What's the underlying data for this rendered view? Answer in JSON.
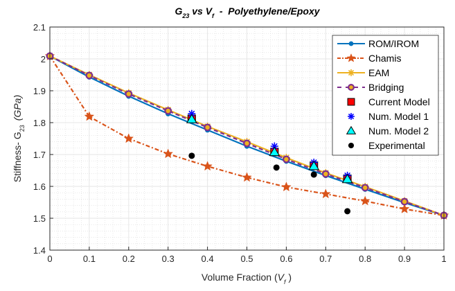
{
  "chart_data": {
    "type": "line",
    "title": {
      "main": "G",
      "sub1": "23",
      "mid": " vs V",
      "sub2": "f",
      "rest": "  -  Polyethylene/Epoxy"
    },
    "xlabel": {
      "main": "Volume Fraction (",
      "italic": "V",
      "sub": "f",
      "close": " )"
    },
    "ylabel": {
      "main": "Stiffness- G",
      "sub": "23",
      "unit": "(GPa)"
    },
    "xlim": [
      0,
      1
    ],
    "ylim": [
      1.4,
      2.1
    ],
    "xticks": [
      "0",
      "0.1",
      "0.2",
      "0.3",
      "0.4",
      "0.5",
      "0.6",
      "0.7",
      "0.8",
      "0.9",
      "1"
    ],
    "yticks": [
      "1.4",
      "1.5",
      "1.6",
      "1.7",
      "1.8",
      "1.9",
      "2",
      "2.1"
    ],
    "grid": true,
    "minor_grid": true,
    "legend_position": "top-right",
    "series": [
      {
        "name": "ROM/IROM",
        "color": "#0072BD",
        "style": "solid",
        "marker": "dot",
        "x": [
          0,
          0.1,
          0.2,
          0.3,
          0.4,
          0.5,
          0.6,
          0.7,
          0.8,
          0.9,
          1
        ],
        "y": [
          2.009,
          1.943,
          1.883,
          1.828,
          1.777,
          1.726,
          1.679,
          1.634,
          1.591,
          1.549,
          1.509
        ]
      },
      {
        "name": "Chamis",
        "color": "#D95319",
        "style": "dashdot",
        "marker": "star",
        "x": [
          0,
          0.1,
          0.2,
          0.3,
          0.4,
          0.5,
          0.6,
          0.7,
          0.8,
          0.9,
          1
        ],
        "y": [
          2.009,
          1.819,
          1.75,
          1.702,
          1.663,
          1.628,
          1.598,
          1.576,
          1.554,
          1.529,
          1.509
        ]
      },
      {
        "name": "EAM",
        "color": "#EDB120",
        "style": "solid",
        "marker": "asterisk",
        "x": [
          0,
          0.1,
          0.2,
          0.3,
          0.4,
          0.5,
          0.6,
          0.7,
          0.8,
          0.9,
          1
        ],
        "y": [
          2.009,
          1.95,
          1.893,
          1.84,
          1.788,
          1.74,
          1.69,
          1.642,
          1.599,
          1.554,
          1.509
        ]
      },
      {
        "name": "Bridging",
        "color": "#7E2F8E",
        "style": "dashed",
        "marker": "circle",
        "x": [
          0,
          0.1,
          0.2,
          0.3,
          0.4,
          0.5,
          0.6,
          0.7,
          0.8,
          0.9,
          1
        ],
        "y": [
          2.009,
          1.948,
          1.89,
          1.837,
          1.785,
          1.735,
          1.685,
          1.639,
          1.596,
          1.552,
          1.509
        ]
      },
      {
        "name": "Current Model",
        "color": "#FF0000",
        "style": "none",
        "marker": "square",
        "x": [
          0.36,
          0.57,
          0.67,
          0.755
        ],
        "y": [
          1.812,
          1.708,
          1.665,
          1.624
        ]
      },
      {
        "name": "Num. Model 1",
        "color": "#0000FF",
        "style": "none",
        "marker": "asterisk",
        "x": [
          0.36,
          0.57,
          0.67,
          0.755
        ],
        "y": [
          1.828,
          1.726,
          1.675,
          1.634
        ]
      },
      {
        "name": "Num. Model 2",
        "color": "#00FFFF",
        "style": "none",
        "marker": "triangle",
        "x": [
          0.36,
          0.57,
          0.67,
          0.755
        ],
        "y": [
          1.81,
          1.707,
          1.663,
          1.622
        ]
      },
      {
        "name": "Experimental",
        "color": "#000000",
        "style": "none",
        "marker": "filled-circle",
        "x": [
          0.36,
          0.575,
          0.67,
          0.755
        ],
        "y": [
          1.696,
          1.659,
          1.637,
          1.522
        ]
      }
    ]
  }
}
